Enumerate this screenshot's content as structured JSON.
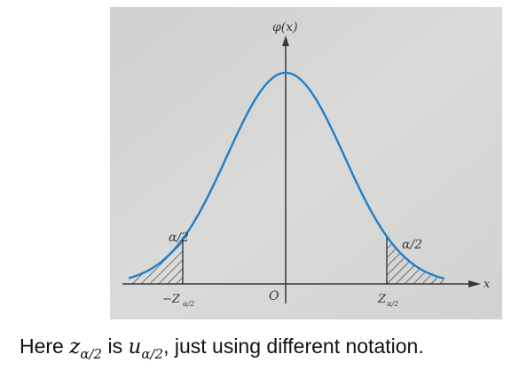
{
  "figure": {
    "y_axis_label": "φ(x)",
    "x_axis_label": "x",
    "origin_label": "O",
    "left_critical_label": "−Z",
    "left_critical_sub": "α/2",
    "right_critical_label": "Z",
    "right_critical_sub": "α/2",
    "left_tail_label": "α/2",
    "right_tail_label": "α/2",
    "colors": {
      "paper": "#d6d6d4",
      "curve": "#1f7fc9",
      "ink": "#333a40"
    }
  },
  "caption": {
    "prefix": "Here ",
    "z_symbol": "z",
    "z_sub": "α/2",
    "middle": " is ",
    "u_symbol": "u",
    "u_sub": "α/2",
    "suffix": ",  just  using different notation."
  }
}
